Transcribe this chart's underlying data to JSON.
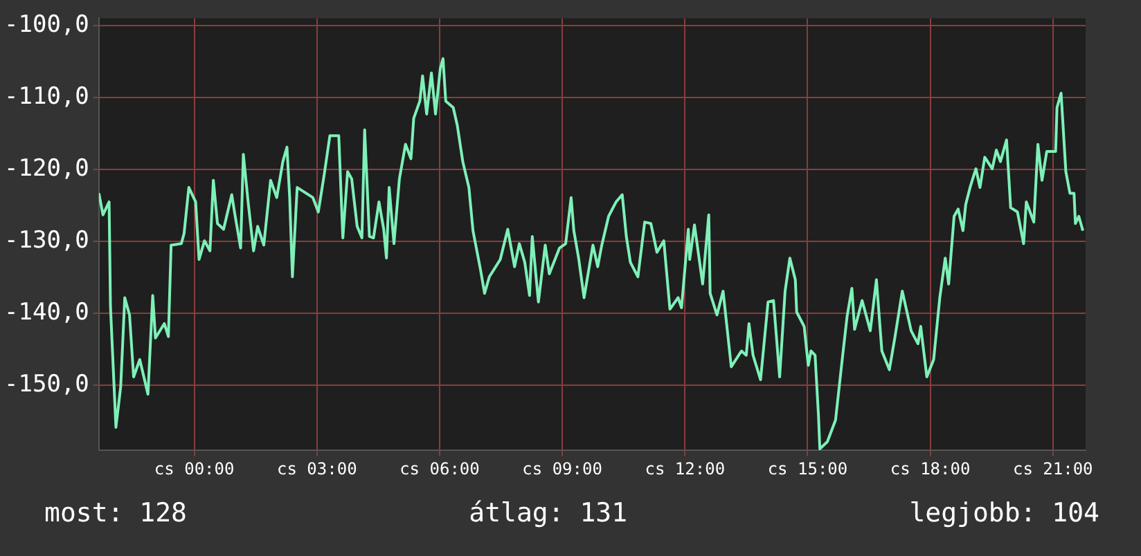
{
  "chart_data": {
    "type": "line",
    "x": [
      "--01-03T21:40",
      "--01-03T21:46",
      "--01-03T21:55",
      "--01-03T21:57",
      "--01-03T22:05",
      "--01-03T22:12",
      "--01-03T22:18",
      "--01-03T22:25",
      "--01-03T22:31",
      "--01-03T22:40",
      "--01-03T22:52",
      "--01-03T22:59",
      "--01-03T23:03",
      "--01-03T23:16",
      "--01-03T23:22",
      "--01-03T23:26",
      "--01-03T23:41",
      "--01-03T23:45",
      "--01-03T23:52",
      "--01-04T00:02",
      "--01-04T00:07",
      "--01-04T00:15",
      "--01-04T00:23",
      "--01-04T00:28",
      "--01-04T00:34",
      "--01-04T00:43",
      "--01-04T00:55",
      "--01-04T00:59",
      "--01-04T01:08",
      "--01-04T01:12",
      "--01-04T01:19",
      "--01-04T01:27",
      "--01-04T01:33",
      "--01-04T01:42",
      "--01-04T01:52",
      "--01-04T02:01",
      "--01-04T02:10",
      "--01-04T02:16",
      "--01-04T02:20",
      "--01-04T02:24",
      "--01-04T02:31",
      "--01-04T02:54",
      "--01-04T03:02",
      "--01-04T03:11",
      "--01-04T03:19",
      "--01-04T03:32",
      "--01-04T03:38",
      "--01-04T03:45",
      "--01-04T03:51",
      "--01-04T03:59",
      "--01-04T04:06",
      "--01-04T04:10",
      "--01-04T04:17",
      "--01-04T04:23",
      "--01-04T04:31",
      "--01-04T04:38",
      "--01-04T04:42",
      "--01-04T04:46",
      "--01-04T04:53",
      "--01-04T05:01",
      "--01-04T05:10",
      "--01-04T05:18",
      "--01-04T05:22",
      "--01-04T05:31",
      "--01-04T05:35",
      "--01-04T05:41",
      "--01-04T05:48",
      "--01-04T05:54",
      "--01-04T06:01",
      "--01-04T06:05",
      "--01-04T06:09",
      "--01-04T06:20",
      "--01-04T06:26",
      "--01-04T06:34",
      "--01-04T06:43",
      "--01-04T06:49",
      "--01-04T07:00",
      "--01-04T07:06",
      "--01-04T07:13",
      "--01-04T07:29",
      "--01-04T07:40",
      "--01-04T07:50",
      "--01-04T07:57",
      "--01-04T08:05",
      "--01-04T08:12",
      "--01-04T08:16",
      "--01-04T08:25",
      "--01-04T08:35",
      "--01-04T08:41",
      "--01-04T08:56",
      "--01-04T09:05",
      "--01-04T09:13",
      "--01-04T09:17",
      "--01-04T09:24",
      "--01-04T09:32",
      "--01-04T09:45",
      "--01-04T09:52",
      "--01-04T09:58",
      "--01-04T10:08",
      "--01-04T10:19",
      "--01-04T10:28",
      "--01-04T10:34",
      "--01-04T10:40",
      "--01-04T10:51",
      "--01-04T11:01",
      "--01-04T11:10",
      "--01-04T11:19",
      "--01-04T11:29",
      "--01-04T11:38",
      "--01-04T11:50",
      "--01-04T11:55",
      "--01-04T12:05",
      "--01-04T12:07",
      "--01-04T12:14",
      "--01-04T12:26",
      "--01-04T12:35",
      "--01-04T12:37",
      "--01-04T12:47",
      "--01-04T12:56",
      "--01-04T13:08",
      "--01-04T13:23",
      "--01-04T13:30",
      "--01-04T13:34",
      "--01-04T13:40",
      "--01-04T13:51",
      "--01-04T14:02",
      "--01-04T14:10",
      "--01-04T14:19",
      "--01-04T14:27",
      "--01-04T14:34",
      "--01-04T14:42",
      "--01-04T14:44",
      "--01-04T14:55",
      "--01-04T15:01",
      "--01-04T15:05",
      "--01-04T15:11",
      "--01-04T15:16",
      "--01-04T15:18",
      "--01-04T15:29",
      "--01-04T15:41",
      "--01-04T15:52",
      "--01-04T15:58",
      "--01-04T16:05",
      "--01-04T16:09",
      "--01-04T16:20",
      "--01-04T16:32",
      "--01-04T16:41",
      "--01-04T16:49",
      "--01-04T17:00",
      "--01-04T17:08",
      "--01-04T17:19",
      "--01-04T17:32",
      "--01-04T17:42",
      "--01-04T17:46",
      "--01-04T17:55",
      "--01-04T18:05",
      "--01-04T18:14",
      "--01-04T18:22",
      "--01-04T18:27",
      "--01-04T18:35",
      "--01-04T18:41",
      "--01-04T18:48",
      "--01-04T18:52",
      "--01-04T18:59",
      "--01-04T19:07",
      "--01-04T19:13",
      "--01-04T19:20",
      "--01-04T19:31",
      "--01-04T19:37",
      "--01-04T19:43",
      "--01-04T19:52",
      "--01-04T19:58",
      "--01-04T20:08",
      "--01-04T20:17",
      "--01-04T20:21",
      "--01-04T20:32",
      "--01-04T20:38",
      "--01-04T20:44",
      "--01-04T20:51",
      "--01-04T21:04",
      "--01-04T21:06",
      "--01-04T21:12",
      "--01-04T21:19",
      "--01-04T21:25",
      "--01-04T21:31",
      "--01-04T21:33",
      "--01-04T21:38",
      "--01-04T21:44"
    ],
    "series": [
      {
        "color": "#7ef0b8",
        "values": [
          -123.3,
          -126.3,
          -124.5,
          -139,
          -155.8,
          -150.2,
          -137.8,
          -140.2,
          -148.8,
          -146.4,
          -151.2,
          -137.5,
          -143.4,
          -141.4,
          -143.2,
          -130.5,
          -130.3,
          -128.9,
          -122.5,
          -124.5,
          -132.5,
          -129.9,
          -131.3,
          -121.5,
          -127.5,
          -128.3,
          -123.5,
          -125.9,
          -130.9,
          -117.9,
          -124.5,
          -131.3,
          -127.9,
          -130.5,
          -121.5,
          -123.9,
          -118.9,
          -116.9,
          -123.9,
          -134.9,
          -122.5,
          -123.9,
          -125.9,
          -120.5,
          -115.3,
          -115.3,
          -129.5,
          -120.3,
          -121.3,
          -127.9,
          -129.5,
          -114.5,
          -129.3,
          -129.5,
          -124.5,
          -128.3,
          -132.3,
          -122.5,
          -130.3,
          -121.3,
          -116.5,
          -118.5,
          -112.9,
          -110.5,
          -107,
          -112.3,
          -106.6,
          -112.3,
          -106,
          -104.6,
          -110.5,
          -111.4,
          -113.9,
          -118.9,
          -122.5,
          -128.5,
          -133.9,
          -137.2,
          -134.9,
          -132.5,
          -128.3,
          -133.5,
          -130.3,
          -132.9,
          -137.5,
          -129.3,
          -138.4,
          -130.5,
          -134.5,
          -130.9,
          -130.3,
          -123.9,
          -128.5,
          -132.3,
          -137.8,
          -130.5,
          -133.5,
          -130.5,
          -126.5,
          -124.5,
          -123.5,
          -129.3,
          -132.9,
          -134.9,
          -127.3,
          -127.5,
          -131.5,
          -129.9,
          -139.4,
          -137.8,
          -139.2,
          -128.3,
          -132.5,
          -127.7,
          -135.9,
          -126.3,
          -137.2,
          -140.2,
          -136.9,
          -147.4,
          -145.2,
          -145.8,
          -141.4,
          -145.8,
          -149.2,
          -138.4,
          -138.2,
          -148.8,
          -136.9,
          -132.3,
          -135.3,
          -139.8,
          -141.8,
          -147.2,
          -145.2,
          -145.8,
          -154.2,
          -158.8,
          -157.8,
          -154.8,
          -145.4,
          -140.4,
          -136.5,
          -142.2,
          -138.2,
          -142.4,
          -135.3,
          -145.2,
          -147.8,
          -143.4,
          -136.9,
          -142.4,
          -144.2,
          -141.8,
          -148.8,
          -146.4,
          -137.8,
          -132.3,
          -135.9,
          -126.5,
          -125.5,
          -128.5,
          -124.9,
          -122.3,
          -119.9,
          -122.5,
          -118.3,
          -119.9,
          -117.3,
          -118.9,
          -115.9,
          -125.3,
          -125.9,
          -130.3,
          -124.5,
          -127.3,
          -116.5,
          -121.5,
          -117.5,
          -117.5,
          -111.4,
          -109.4,
          -120.3,
          -123.3,
          -123.3,
          -127.5,
          -126.5,
          -128.5
        ]
      }
    ],
    "xlim": [
      "--01-03T21:40",
      "--01-04T21:48"
    ],
    "xticks": [
      {
        "value": "--01-04T00:00",
        "label": "cs 00:00"
      },
      {
        "value": "--01-04T03:00",
        "label": "cs 03:00"
      },
      {
        "value": "--01-04T06:00",
        "label": "cs 06:00"
      },
      {
        "value": "--01-04T09:00",
        "label": "cs 09:00"
      },
      {
        "value": "--01-04T12:00",
        "label": "cs 12:00"
      },
      {
        "value": "--01-04T15:00",
        "label": "cs 15:00"
      },
      {
        "value": "--01-04T18:00",
        "label": "cs 18:00"
      },
      {
        "value": "--01-04T21:00",
        "label": "cs 21:00"
      }
    ],
    "ylim": [
      -159,
      -99
    ],
    "yticks": [
      {
        "value": -150,
        "label": "-150,0"
      },
      {
        "value": -140,
        "label": "-140,0"
      },
      {
        "value": -130,
        "label": "-130,0"
      },
      {
        "value": -120,
        "label": "-120,0"
      },
      {
        "value": -110,
        "label": "-110,0"
      },
      {
        "value": -100,
        "label": "-100,0"
      }
    ],
    "grid": true,
    "legend": false,
    "line_style": "solid",
    "annotations": [
      "most: 128",
      "átlag: 131",
      "legjobb: 104"
    ]
  }
}
